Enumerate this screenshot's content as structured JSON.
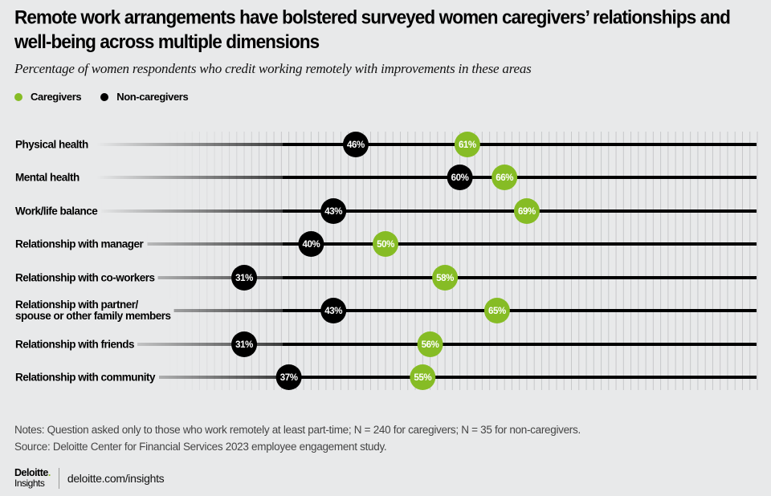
{
  "colors": {
    "caregivers": "#86bc25",
    "non_caregivers": "#000000",
    "background": "#e8e9ea"
  },
  "chart_data": {
    "type": "dot-plot",
    "title": "Remote work arrangements have bolstered surveyed women caregivers’ relationships and well-being across multiple dimensions",
    "subtitle": "Percentage of women respondents who credit working remotely with improvements in these areas",
    "xlim": [
      0,
      100
    ],
    "grid": true,
    "legend_position": "top-left",
    "legend": [
      "Caregivers",
      "Non-caregivers"
    ],
    "categories": [
      [
        "Physical health"
      ],
      [
        "Mental health"
      ],
      [
        "Work/life balance"
      ],
      [
        "Relationship with manager"
      ],
      [
        "Relationship with co-workers"
      ],
      [
        "Relationship with partner/",
        "spouse or other family members"
      ],
      [
        "Relationship with friends"
      ],
      [
        "Relationship with community"
      ]
    ],
    "series": [
      {
        "name": "Caregivers",
        "values": [
          61,
          66,
          69,
          50,
          58,
          65,
          56,
          55
        ],
        "labels": [
          "61%",
          "66%",
          "69%",
          "50%",
          "58%",
          "65%",
          "56%",
          "55%"
        ]
      },
      {
        "name": "Non-caregivers",
        "values": [
          46,
          60,
          43,
          40,
          31,
          43,
          31,
          37
        ],
        "labels": [
          "46%",
          "60%",
          "43%",
          "40%",
          "31%",
          "43%",
          "31%",
          "37%"
        ]
      }
    ]
  },
  "notes": "Notes: Question asked only to those who work remotely at least part-time; N = 240 for caregivers; N = 35 for non-caregivers.",
  "source": "Source: Deloitte Center for Financial Services 2023 employee engagement study.",
  "footer": {
    "logo_brand": "Deloitte",
    "logo_period": ".",
    "logo_sub": "Insights",
    "url": "deloitte.com/insights"
  }
}
